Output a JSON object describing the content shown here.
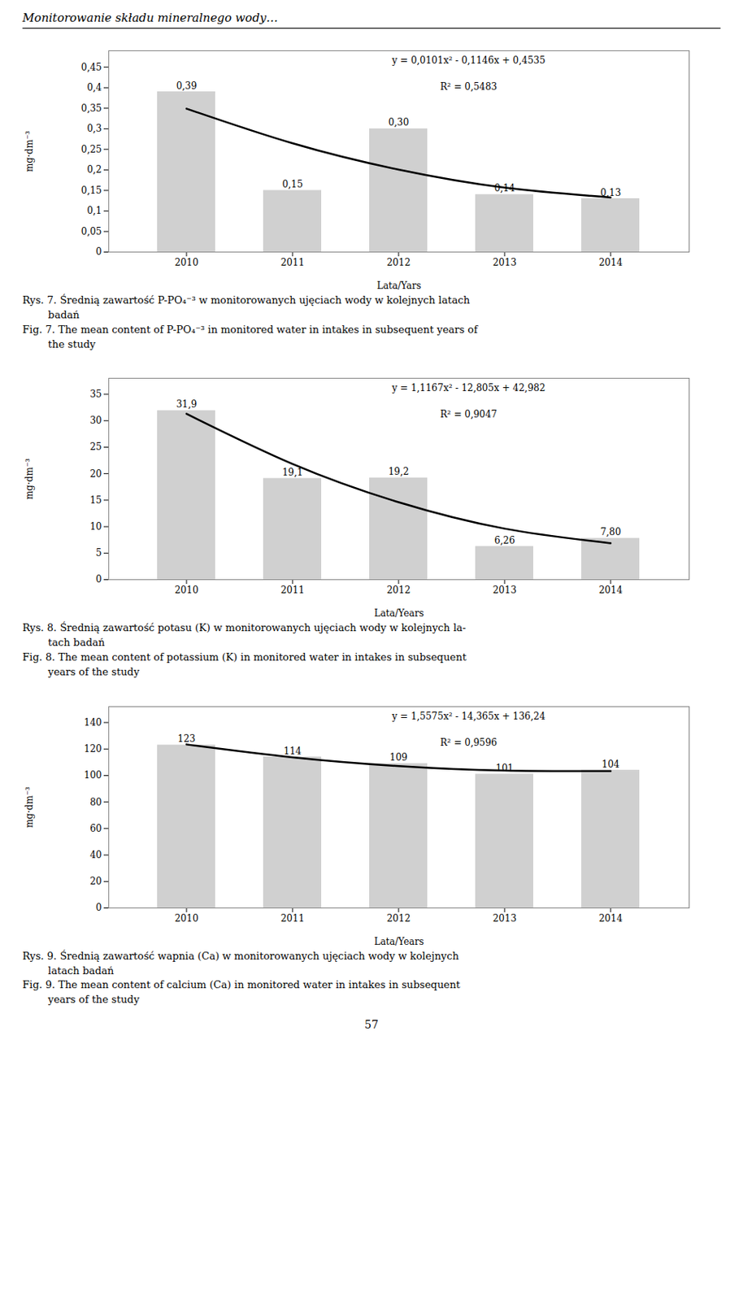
{
  "title": "Monitorowanie składu mineralnego wody…",
  "chart_data": [
    {
      "type": "bar",
      "categories": [
        "2010",
        "2011",
        "2012",
        "2013",
        "2014"
      ],
      "series": [
        {
          "type": "bar",
          "color": "#d0d0d0",
          "values": [
            0.39,
            0.15,
            0.3,
            0.14,
            0.13
          ],
          "value_labels": [
            "0,39",
            "0,15",
            "0,30",
            "0,14",
            "0,13"
          ]
        },
        {
          "type": "line",
          "color": "#000000",
          "values": [
            0.349,
            0.2647,
            0.2006,
            0.1567,
            0.133
          ]
        }
      ],
      "data_labels": true,
      "xlabel": "Lata/Yars",
      "ylabel": "mg·dm⁻³",
      "ylim": [
        0,
        0.49
      ],
      "yticks": [
        0,
        {
          "value": 0.05,
          "label": "0,05"
        },
        {
          "value": 0.1,
          "label": "0,1"
        },
        {
          "value": 0.15,
          "label": "0,15"
        },
        {
          "value": 0.2,
          "label": "0,2"
        },
        {
          "value": 0.25,
          "label": "0,25"
        },
        {
          "value": 0.3,
          "label": "0,3"
        },
        {
          "value": 0.35,
          "label": "0,35"
        },
        {
          "value": 0.4,
          "label": "0,4"
        },
        {
          "value": 0.45,
          "label": "0,45"
        }
      ],
      "annotations": [
        "y = 0,0101x² - 0,1146x + 0,4535",
        "R² = 0,5483"
      ],
      "caption": [
        "Rys. 7. Średnią zawartość P-PO₄⁻³ w monitorowanych ujęciach wody w kolejnych latach",
        "        badań",
        "Fig. 7. The mean content of P-PO₄⁻³ in monitored water in intakes in subsequent years of",
        "        the study"
      ]
    },
    {
      "type": "bar",
      "categories": [
        "2010",
        "2011",
        "2012",
        "2013",
        "2014"
      ],
      "series": [
        {
          "type": "bar",
          "color": "#d0d0d0",
          "values": [
            31.9,
            19.1,
            19.2,
            6.26,
            7.8
          ],
          "value_labels": [
            "31,9",
            "19,1",
            "19,2",
            "6,26",
            "7,80"
          ]
        },
        {
          "type": "line",
          "color": "#000000",
          "values": [
            31.2937,
            21.8388,
            14.6173,
            9.6292,
            6.8745
          ]
        }
      ],
      "data_labels": true,
      "xlabel": "Lata/Years",
      "ylabel": "mg·dm⁻³",
      "ylim": [
        0,
        38
      ],
      "yticks": [
        0,
        5,
        10,
        15,
        20,
        25,
        30,
        35
      ],
      "annotations": [
        "y = 1,1167x² - 12,805x + 42,982",
        "R² = 0,9047"
      ],
      "caption": [
        "Rys. 8. Średnią zawartość potasu (K) w monitorowanych ujęciach wody w kolejnych la-",
        "        tach badań",
        "Fig. 8. The mean content of potassium (K) in monitored water in intakes in subsequent",
        "        years of the study"
      ]
    },
    {
      "type": "bar",
      "categories": [
        "2010",
        "2011",
        "2012",
        "2013",
        "2014"
      ],
      "series": [
        {
          "type": "bar",
          "color": "#d0d0d0",
          "values": [
            123,
            114,
            109,
            101,
            104
          ],
          "value_labels": [
            "123",
            "114",
            "109",
            "101",
            "104"
          ]
        },
        {
          "type": "line",
          "color": "#000000",
          "values": [
            123.4325,
            113.74,
            107.1625,
            103.7,
            103.3525
          ]
        }
      ],
      "data_labels": true,
      "xlabel": "Lata/Years",
      "ylabel": "mg·dm⁻³",
      "ylim": [
        0,
        152
      ],
      "yticks": [
        0,
        20,
        40,
        60,
        80,
        100,
        120,
        140
      ],
      "annotations": [
        "y = 1,5575x² - 14,365x + 136,24",
        "R² = 0,9596"
      ],
      "caption": [
        "Rys. 9. Średnią zawartość wapnia (Ca) w monitorowanych ujęciach wody w kolejnych",
        "        latach badań",
        "Fig. 9. The mean content of calcium (Ca) in monitored water in intakes in subsequent",
        "        years of the study"
      ]
    }
  ],
  "footer": "57"
}
